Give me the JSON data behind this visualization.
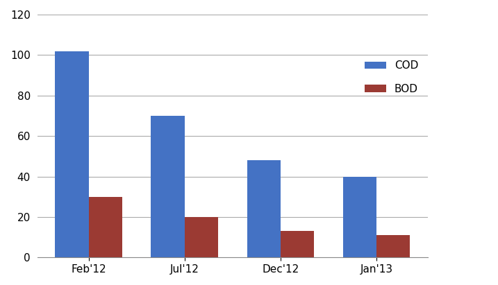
{
  "categories": [
    "Feb'12",
    "Jul'12",
    "Dec'12",
    "Jan'13"
  ],
  "COD": [
    102,
    70,
    48,
    40
  ],
  "BOD": [
    30,
    20,
    13,
    11
  ],
  "cod_color": "#4472C4",
  "bod_color": "#9B3A33",
  "ylim": [
    0,
    120
  ],
  "yticks": [
    0,
    20,
    40,
    60,
    80,
    100,
    120
  ],
  "legend_labels": [
    "COD",
    "BOD"
  ],
  "bar_width": 0.35,
  "background_color": "#FFFFFF",
  "grid_color": "#AAAAAA",
  "font_size": 11
}
